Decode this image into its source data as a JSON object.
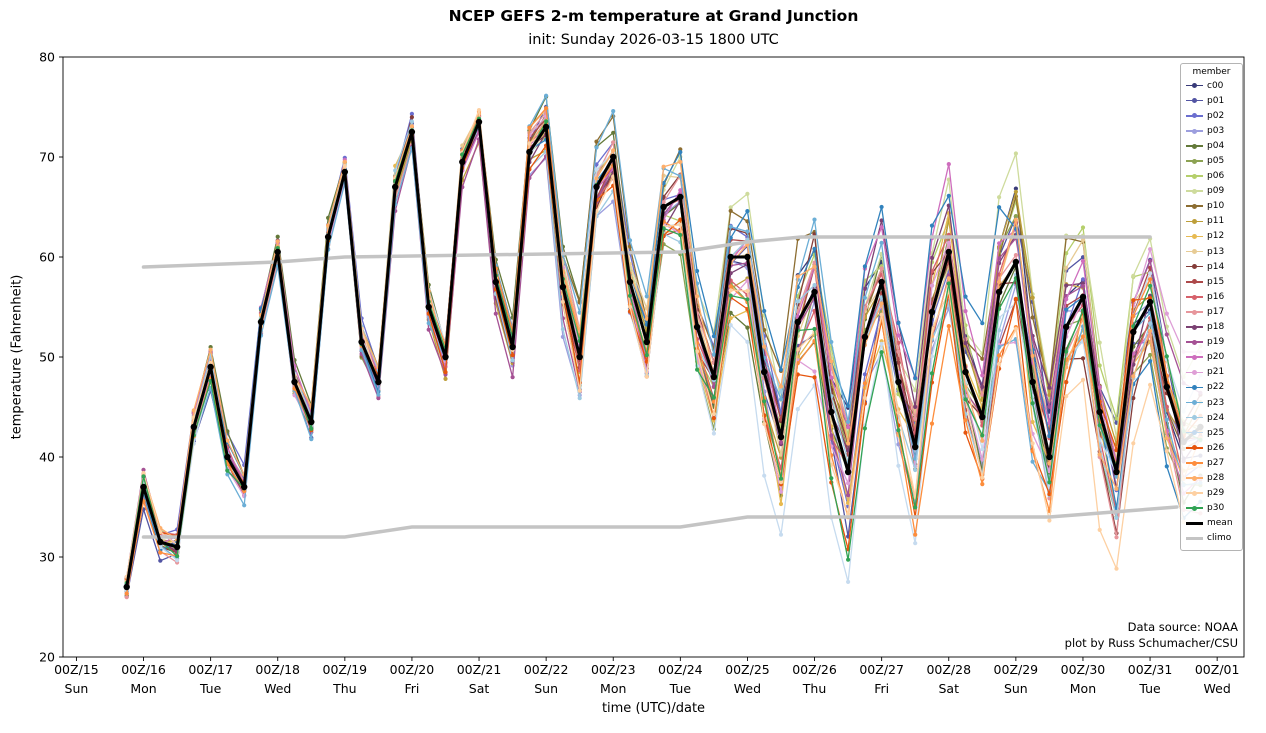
{
  "chart_data": {
    "type": "line",
    "title": "NCEP GEFS 2-m temperature at Grand Junction",
    "subtitle": "init: Sunday 2026-03-15 1800 UTC",
    "xlabel": "time (UTC)/date",
    "ylabel": "temperature (Fahrenheit)",
    "ylim": [
      20,
      80
    ],
    "xlim_days": [
      -0.2,
      17.4
    ],
    "y_ticks": [
      20,
      30,
      40,
      50,
      60,
      70,
      80
    ],
    "x_ticks": [
      "00Z/15",
      "00Z/16",
      "00Z/17",
      "00Z/18",
      "00Z/19",
      "00Z/20",
      "00Z/21",
      "00Z/22",
      "00Z/23",
      "00Z/24",
      "00Z/25",
      "00Z/26",
      "00Z/27",
      "00Z/28",
      "00Z/29",
      "00Z/30",
      "00Z/31",
      "00Z/01"
    ],
    "x_day_names": [
      "Sun",
      "Mon",
      "Tue",
      "Wed",
      "Thu",
      "Fri",
      "Sat",
      "Sun",
      "Mon",
      "Tue",
      "Wed",
      "Thu",
      "Fri",
      "Sat",
      "Sun",
      "Mon",
      "Tue",
      "Wed"
    ],
    "x_start_day": 0.75,
    "x_step_days": 0.25,
    "mean_color": "#000000",
    "climo_color": "#c4c4c4",
    "mean": [
      27,
      37,
      31.5,
      31,
      43,
      49,
      40,
      37,
      53.5,
      60.5,
      47.5,
      43.5,
      62,
      68.5,
      51.5,
      47.5,
      67,
      72.5,
      55,
      50,
      69.5,
      73.5,
      57.5,
      51,
      70.5,
      73,
      57,
      50,
      67,
      70,
      57.5,
      51.5,
      65,
      66,
      53,
      48,
      60,
      60,
      48.5,
      42,
      53.5,
      56.5,
      44.5,
      38.5,
      52,
      57.5,
      47.5,
      41,
      54.5,
      60.5,
      48.5,
      44,
      56.5,
      59.5,
      47.5,
      40,
      53,
      56,
      44.5,
      38.5,
      52.5,
      55.5,
      47,
      41.5,
      43
    ],
    "spread": [
      1.5,
      2.5,
      2,
      2,
      2,
      2,
      2,
      1.5,
      1.5,
      1.5,
      1.5,
      1.5,
      1.5,
      1.5,
      2,
      2,
      2,
      1.5,
      2,
      2,
      2,
      1.5,
      2.5,
      2.5,
      2.5,
      3,
      4,
      5,
      4,
      4,
      4,
      4.5,
      5,
      6,
      6,
      5.5,
      7,
      7,
      7,
      8,
      8,
      9,
      9,
      10,
      10,
      10,
      10,
      11,
      11,
      10,
      10,
      10,
      11,
      10,
      10,
      9,
      9,
      8,
      9,
      9,
      9,
      8,
      8,
      8,
      8
    ],
    "climo_max": {
      "x": [
        1,
        3,
        4,
        9,
        10,
        10.8,
        16
      ],
      "y": [
        59,
        59.5,
        60,
        60.5,
        61.5,
        62,
        62
      ]
    },
    "climo_min": {
      "x": [
        1,
        4,
        5,
        9,
        10,
        14.5,
        16.4
      ],
      "y": [
        32,
        32,
        33,
        33,
        34,
        34,
        35
      ]
    },
    "members": [
      {
        "name": "c00",
        "color": "#393b79",
        "seed": 11
      },
      {
        "name": "p01",
        "color": "#5254a3",
        "seed": 23
      },
      {
        "name": "p02",
        "color": "#6b6ecf",
        "seed": 37
      },
      {
        "name": "p03",
        "color": "#9c9ede",
        "seed": 41
      },
      {
        "name": "p04",
        "color": "#637939",
        "seed": 53
      },
      {
        "name": "p05",
        "color": "#8ca252",
        "seed": 67
      },
      {
        "name": "p06",
        "color": "#b5cf6b",
        "seed": 71
      },
      {
        "name": "p09",
        "color": "#cedb9c",
        "seed": 83
      },
      {
        "name": "p10",
        "color": "#8c6d31",
        "seed": 97
      },
      {
        "name": "p11",
        "color": "#bd9e39",
        "seed": 101
      },
      {
        "name": "p12",
        "color": "#e7ba52",
        "seed": 113
      },
      {
        "name": "p13",
        "color": "#e7cb94",
        "seed": 127
      },
      {
        "name": "p14",
        "color": "#843c39",
        "seed": 131
      },
      {
        "name": "p15",
        "color": "#ad494a",
        "seed": 139
      },
      {
        "name": "p16",
        "color": "#d6616b",
        "seed": 149
      },
      {
        "name": "p17",
        "color": "#e7969c",
        "seed": 151
      },
      {
        "name": "p18",
        "color": "#7b4173",
        "seed": 163
      },
      {
        "name": "p19",
        "color": "#a55194",
        "seed": 167
      },
      {
        "name": "p20",
        "color": "#ce6dbd",
        "seed": 173
      },
      {
        "name": "p21",
        "color": "#de9ed6",
        "seed": 179
      },
      {
        "name": "p22",
        "color": "#3182bd",
        "seed": 181
      },
      {
        "name": "p23",
        "color": "#6baed6",
        "seed": 191
      },
      {
        "name": "p24",
        "color": "#9ecae1",
        "seed": 193
      },
      {
        "name": "p25",
        "color": "#c6dbef",
        "seed": 197
      },
      {
        "name": "p26",
        "color": "#e6550d",
        "seed": 199
      },
      {
        "name": "p27",
        "color": "#fd8d3c",
        "seed": 211
      },
      {
        "name": "p28",
        "color": "#fdae6b",
        "seed": 223
      },
      {
        "name": "p29",
        "color": "#fdd0a2",
        "seed": 227
      },
      {
        "name": "p30",
        "color": "#31a354",
        "seed": 229
      }
    ]
  },
  "legend": {
    "title": "member",
    "entries": [
      {
        "label": "c00",
        "color": "#393b79",
        "lw": 1.5,
        "marker": true
      },
      {
        "label": "p01",
        "color": "#5254a3",
        "lw": 1.5,
        "marker": true
      },
      {
        "label": "p02",
        "color": "#6b6ecf",
        "lw": 1.5,
        "marker": true
      },
      {
        "label": "p03",
        "color": "#9c9ede",
        "lw": 1.5,
        "marker": true
      },
      {
        "label": "p04",
        "color": "#637939",
        "lw": 1.5,
        "marker": true
      },
      {
        "label": "p05",
        "color": "#8ca252",
        "lw": 1.5,
        "marker": true
      },
      {
        "label": "p06",
        "color": "#b5cf6b",
        "lw": 1.5,
        "marker": true
      },
      {
        "label": "p09",
        "color": "#cedb9c",
        "lw": 1.5,
        "marker": true
      },
      {
        "label": "p10",
        "color": "#8c6d31",
        "lw": 1.5,
        "marker": true
      },
      {
        "label": "p11",
        "color": "#bd9e39",
        "lw": 1.5,
        "marker": true
      },
      {
        "label": "p12",
        "color": "#e7ba52",
        "lw": 1.5,
        "marker": true
      },
      {
        "label": "p13",
        "color": "#e7cb94",
        "lw": 1.5,
        "marker": true
      },
      {
        "label": "p14",
        "color": "#843c39",
        "lw": 1.5,
        "marker": true
      },
      {
        "label": "p15",
        "color": "#ad494a",
        "lw": 1.5,
        "marker": true
      },
      {
        "label": "p16",
        "color": "#d6616b",
        "lw": 1.5,
        "marker": true
      },
      {
        "label": "p17",
        "color": "#e7969c",
        "lw": 1.5,
        "marker": true
      },
      {
        "label": "p18",
        "color": "#7b4173",
        "lw": 1.5,
        "marker": true
      },
      {
        "label": "p19",
        "color": "#a55194",
        "lw": 1.5,
        "marker": true
      },
      {
        "label": "p20",
        "color": "#ce6dbd",
        "lw": 1.5,
        "marker": true
      },
      {
        "label": "p21",
        "color": "#de9ed6",
        "lw": 1.5,
        "marker": true
      },
      {
        "label": "p22",
        "color": "#3182bd",
        "lw": 1.5,
        "marker": true
      },
      {
        "label": "p23",
        "color": "#6baed6",
        "lw": 1.5,
        "marker": true
      },
      {
        "label": "p24",
        "color": "#9ecae1",
        "lw": 1.5,
        "marker": true
      },
      {
        "label": "p25",
        "color": "#c6dbef",
        "lw": 1.5,
        "marker": true
      },
      {
        "label": "p26",
        "color": "#e6550d",
        "lw": 1.5,
        "marker": true
      },
      {
        "label": "p27",
        "color": "#fd8d3c",
        "lw": 1.5,
        "marker": true
      },
      {
        "label": "p28",
        "color": "#fdae6b",
        "lw": 1.5,
        "marker": true
      },
      {
        "label": "p29",
        "color": "#fdd0a2",
        "lw": 1.5,
        "marker": true
      },
      {
        "label": "p30",
        "color": "#31a354",
        "lw": 1.5,
        "marker": true
      },
      {
        "label": "mean",
        "color": "#000000",
        "lw": 3,
        "marker": false
      },
      {
        "label": "climo",
        "color": "#c4c4c4",
        "lw": 3,
        "marker": false
      }
    ]
  },
  "annotations": {
    "source": "Data source: NOAA",
    "credit": "plot by Russ Schumacher/CSU"
  }
}
